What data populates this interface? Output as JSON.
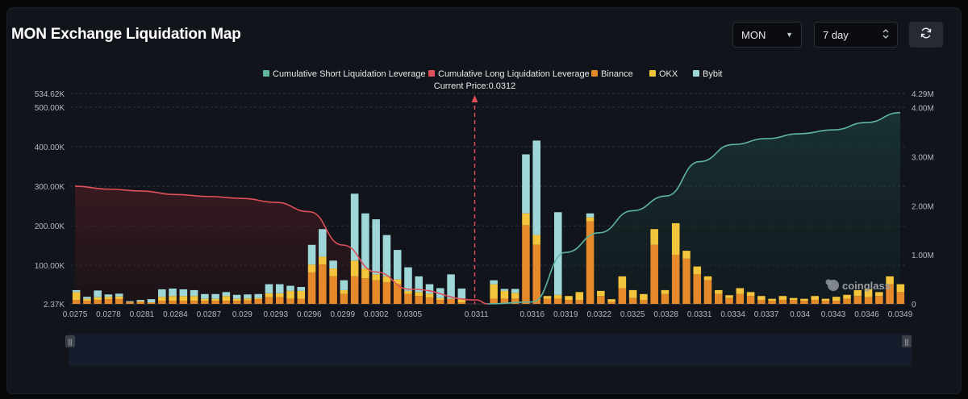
{
  "title": "MON Exchange Liquidation Map",
  "controls": {
    "symbol": "MON",
    "period": "7 day"
  },
  "icons": {
    "dropdown": "chevron-down-icon",
    "stepper": "up-down-stepper-icon",
    "refresh": "refresh-icon",
    "watermark": "coinglass-logo"
  },
  "watermark": "coinglass",
  "colors": {
    "short_line": "#5fb59e",
    "long_line": "#e0505a",
    "binance": "#e6892b",
    "okx": "#f2c53d",
    "bybit": "#9fd6d8",
    "current_price": "#e0505a"
  },
  "chart_data": {
    "type": "bar",
    "legend_position": "top-center",
    "legend": [
      "Cumulative Short Liquidation Leverage",
      "Cumulative Long Liquidation Leverage",
      "Binance",
      "OKX",
      "Bybit"
    ],
    "current_price_label": "Current Price:0.0312",
    "current_price": 0.0312,
    "x_tick_labels": [
      "0.0275",
      "0.0278",
      "0.0281",
      "0.0284",
      "0.0287",
      "0.029",
      "0.0293",
      "0.0296",
      "0.0299",
      "0.0302",
      "0.0305",
      "0.0311",
      "0.0316",
      "0.0319",
      "0.0322",
      "0.0325",
      "0.0328",
      "0.0331",
      "0.0334",
      "0.0337",
      "0.034",
      "0.0343",
      "0.0346",
      "0.0349"
    ],
    "y_left": {
      "ticks": [
        "2.37K",
        "100.00K",
        "200.00K",
        "300.00K",
        "400.00K",
        "500.00K",
        "534.62K"
      ],
      "range": [
        2370,
        534620
      ]
    },
    "y_right": {
      "ticks": [
        "0",
        "1.00M",
        "2.00M",
        "3.00M",
        "4.00M",
        "4.29M"
      ],
      "range": [
        0,
        4290000
      ]
    },
    "grid": "horizontal dashed",
    "series": [
      {
        "name": "Binance",
        "values": [
          10000,
          8000,
          10000,
          12000,
          12000,
          5000,
          5000,
          3000,
          8000,
          8000,
          8000,
          8000,
          8000,
          8000,
          8000,
          8000,
          9000,
          12000,
          17000,
          17000,
          13000,
          13000,
          80000,
          100000,
          70000,
          25000,
          70000,
          65000,
          60000,
          55000,
          50000,
          25000,
          20000,
          16000,
          10000,
          13000,
          4000,
          0,
          0,
          13000,
          13000,
          13000,
          200000,
          150000,
          13000,
          13000,
          10000,
          10000,
          210000,
          20000,
          5000,
          40000,
          15000,
          10000,
          150000,
          25000,
          125000,
          115000,
          75000,
          60000,
          25000,
          15000,
          25000,
          20000,
          10000,
          8000,
          10000,
          10000,
          8000,
          10000,
          8000,
          8000,
          13000,
          20000,
          17000,
          20000,
          50000,
          30000
        ]
      },
      {
        "name": "OKX",
        "values": [
          20000,
          5000,
          7000,
          6000,
          7000,
          0,
          2000,
          1000,
          10000,
          12000,
          12000,
          12000,
          5000,
          5000,
          12000,
          5000,
          5000,
          3000,
          10000,
          10000,
          20000,
          20000,
          20000,
          20000,
          20000,
          10000,
          40000,
          25000,
          15000,
          15000,
          12000,
          8000,
          10000,
          10000,
          5000,
          0,
          10000,
          0,
          0,
          37000,
          20000,
          15000,
          30000,
          25000,
          7000,
          10000,
          10000,
          20000,
          10000,
          13000,
          7000,
          30000,
          20000,
          15000,
          40000,
          10000,
          80000,
          20000,
          20000,
          10000,
          10000,
          7000,
          15000,
          10000,
          10000,
          5000,
          10000,
          5000,
          5000,
          10000,
          5000,
          10000,
          10000,
          15000,
          20000,
          10000,
          20000,
          20000
        ]
      },
      {
        "name": "Bybit",
        "values": [
          5000,
          5000,
          17000,
          6000,
          7000,
          2000,
          3000,
          8000,
          19000,
          19000,
          17000,
          15000,
          12000,
          12000,
          10000,
          10000,
          10000,
          10000,
          23000,
          23000,
          13000,
          10000,
          50000,
          70000,
          20000,
          25000,
          170000,
          140000,
          140000,
          105000,
          75000,
          60000,
          40000,
          24000,
          25000,
          62000,
          25000,
          0,
          0,
          10000,
          5000,
          10000,
          150000,
          240000,
          0,
          210000,
          0,
          0,
          10000,
          0,
          0,
          0,
          0,
          0,
          0,
          0,
          0,
          0,
          0,
          0,
          0,
          0,
          0,
          0,
          0,
          0,
          0,
          0,
          0,
          0,
          0,
          0,
          0,
          0,
          0,
          0,
          0,
          0
        ]
      },
      {
        "name": "Cumulative Long Liquidation Leverage",
        "x": [
          0.0275,
          0.0278,
          0.0281,
          0.0284,
          0.0287,
          0.029,
          0.0293,
          0.0296,
          0.0299,
          0.0302,
          0.0305,
          0.0311,
          0.0312
        ],
        "values": [
          2400000,
          2340000,
          2300000,
          2230000,
          2190000,
          2150000,
          2070000,
          1880000,
          1200000,
          650000,
          300000,
          80000,
          0
        ]
      },
      {
        "name": "Cumulative Short Liquidation Leverage",
        "x": [
          0.0312,
          0.0316,
          0.0319,
          0.0322,
          0.0325,
          0.0328,
          0.0331,
          0.0334,
          0.0337,
          0.034,
          0.0343,
          0.0346,
          0.0349
        ],
        "values": [
          0,
          40000,
          1050000,
          1450000,
          1900000,
          2200000,
          2900000,
          3250000,
          3370000,
          3470000,
          3550000,
          3700000,
          3900000
        ]
      }
    ]
  }
}
